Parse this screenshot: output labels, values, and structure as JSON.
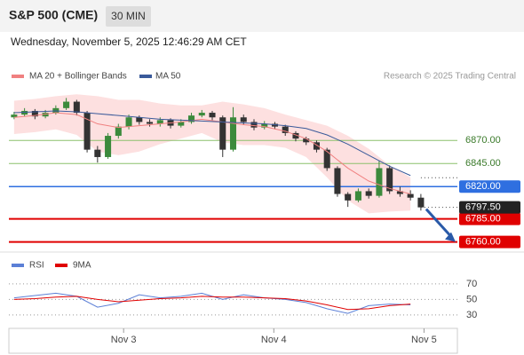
{
  "header": {
    "symbol": "S&P 500 (CME)",
    "interval": "30 MIN",
    "datetime": "Wednesday, November 5, 2025 12:46:29 AM CET"
  },
  "chart_data": [
    {
      "type": "candlestick",
      "credit": "Research © 2025 Trading Central",
      "up_color": "#3c8a3c",
      "down_color": "#333333",
      "xlim": [
        -0.5,
        42.5
      ],
      "xticks": [
        {
          "value": 10.5,
          "label": "Nov 3"
        },
        {
          "value": 24.9,
          "label": "Nov 4"
        },
        {
          "value": 39.3,
          "label": "Nov 5"
        }
      ],
      "ylim": [
        6751,
        6926
      ],
      "candles": [
        [
          6895,
          6901,
          6893,
          6898
        ],
        [
          6898,
          6905,
          6896,
          6902
        ],
        [
          6902,
          6904,
          6893,
          6896
        ],
        [
          6896,
          6903,
          6894,
          6900
        ],
        [
          6900,
          6908,
          6898,
          6905
        ],
        [
          6905,
          6916,
          6903,
          6912
        ],
        [
          6912,
          6914,
          6897,
          6900
        ],
        [
          6900,
          6902,
          6857,
          6860
        ],
        [
          6860,
          6864,
          6846,
          6852
        ],
        [
          6852,
          6878,
          6850,
          6875
        ],
        [
          6875,
          6888,
          6872,
          6885
        ],
        [
          6885,
          6898,
          6882,
          6895
        ],
        [
          6895,
          6897,
          6887,
          6890
        ],
        [
          6890,
          6893,
          6885,
          6888
        ],
        [
          6888,
          6895,
          6885,
          6892
        ],
        [
          6892,
          6894,
          6883,
          6886
        ],
        [
          6886,
          6893,
          6884,
          6890
        ],
        [
          6890,
          6900,
          6888,
          6897
        ],
        [
          6897,
          6903,
          6895,
          6900
        ],
        [
          6900,
          6902,
          6892,
          6895
        ],
        [
          6895,
          6897,
          6852,
          6860
        ],
        [
          6860,
          6906,
          6858,
          6895
        ],
        [
          6895,
          6898,
          6887,
          6890
        ],
        [
          6890,
          6893,
          6881,
          6884
        ],
        [
          6884,
          6891,
          6882,
          6888
        ],
        [
          6888,
          6890,
          6882,
          6885
        ],
        [
          6885,
          6887,
          6875,
          6878
        ],
        [
          6878,
          6880,
          6869,
          6872
        ],
        [
          6872,
          6874,
          6865,
          6868
        ],
        [
          6868,
          6870,
          6857,
          6860
        ],
        [
          6860,
          6862,
          6837,
          6840
        ],
        [
          6840,
          6842,
          6809,
          6812
        ],
        [
          6812,
          6814,
          6798,
          6805
        ],
        [
          6805,
          6818,
          6803,
          6815
        ],
        [
          6815,
          6818,
          6807,
          6810
        ],
        [
          6810,
          6848,
          6808,
          6840
        ],
        [
          6840,
          6843,
          6812,
          6815
        ],
        [
          6815,
          6820,
          6809,
          6812
        ],
        [
          6812,
          6816,
          6805,
          6808
        ],
        [
          6808,
          6812,
          6794,
          6797.5
        ]
      ],
      "band": {
        "color": "#fde0e0",
        "x": [
          0,
          2,
          4,
          6,
          8,
          10,
          12,
          14,
          16,
          18,
          20,
          22,
          24,
          26,
          28,
          30,
          32,
          34,
          36,
          38
        ],
        "upper": [
          6913,
          6915,
          6918,
          6920,
          6918,
          6914,
          6914,
          6910,
          6908,
          6908,
          6912,
          6909,
          6905,
          6898,
          6892,
          6886,
          6875,
          6861,
          6843,
          6830
        ],
        "lower": [
          6877,
          6879,
          6882,
          6876,
          6858,
          6854,
          6858,
          6866,
          6872,
          6878,
          6868,
          6865,
          6865,
          6862,
          6852,
          6830,
          6805,
          6791,
          6793,
          6794
        ]
      },
      "series": [
        {
          "name": "MA 20 + Bollinger Bands",
          "color": "#f08080",
          "x": [
            0,
            2,
            4,
            6,
            8,
            10,
            12,
            14,
            16,
            18,
            20,
            22,
            24,
            26,
            28,
            30,
            32,
            34,
            36,
            38
          ],
          "values": [
            6895,
            6897,
            6900,
            6898,
            6888,
            6884,
            6886,
            6888,
            6890,
            6893,
            6890,
            6887,
            6885,
            6880,
            6872,
            6858,
            6840,
            6826,
            6818,
            6812
          ]
        },
        {
          "name": "MA 50",
          "color": "#3a5a9a",
          "x": [
            0,
            2,
            4,
            6,
            8,
            10,
            12,
            14,
            16,
            18,
            20,
            22,
            24,
            26,
            28,
            30,
            32,
            34,
            36,
            38
          ],
          "values": [
            6900,
            6901,
            6902,
            6901,
            6899,
            6897,
            6895,
            6893,
            6892,
            6891,
            6890,
            6889,
            6888,
            6886,
            6883,
            6876,
            6866,
            6854,
            6842,
            6832
          ]
        }
      ],
      "levels": [
        {
          "value": 6870,
          "label": "6870.00",
          "color": "#8cc06c",
          "boxed": false
        },
        {
          "value": 6845,
          "label": "6845.00",
          "color": "#8cc06c",
          "boxed": false
        },
        {
          "value": 6820,
          "label": "6820.00",
          "color": "#2f6fe0",
          "boxed": true
        },
        {
          "value": 6785,
          "label": "6785.00",
          "color": "#e00000",
          "boxed": true
        },
        {
          "value": 6760,
          "label": "6760.00",
          "color": "#e00000",
          "boxed": true
        }
      ],
      "last": {
        "value": 6797.5,
        "label": "6797.50",
        "color": "#222222"
      }
    },
    {
      "type": "line",
      "ylim": [
        15,
        79
      ],
      "yticks": [
        70,
        50,
        30
      ],
      "series": [
        {
          "name": "RSI",
          "color": "#5b7fd6",
          "x": [
            0,
            2,
            4,
            6,
            8,
            10,
            12,
            14,
            16,
            18,
            20,
            22,
            24,
            26,
            28,
            30,
            32,
            34,
            36,
            38
          ],
          "values": [
            52,
            55,
            58,
            54,
            40,
            45,
            56,
            52,
            54,
            58,
            50,
            56,
            52,
            50,
            46,
            38,
            32,
            42,
            44,
            43
          ]
        },
        {
          "name": "9MA",
          "color": "#e00000",
          "x": [
            0,
            2,
            4,
            6,
            8,
            10,
            12,
            14,
            16,
            18,
            20,
            22,
            24,
            26,
            28,
            30,
            32,
            34,
            36,
            38
          ],
          "values": [
            50,
            51,
            53,
            54,
            50,
            47,
            49,
            51,
            52,
            54,
            53,
            53,
            52,
            51,
            48,
            43,
            37,
            38,
            42,
            44
          ]
        }
      ]
    }
  ]
}
